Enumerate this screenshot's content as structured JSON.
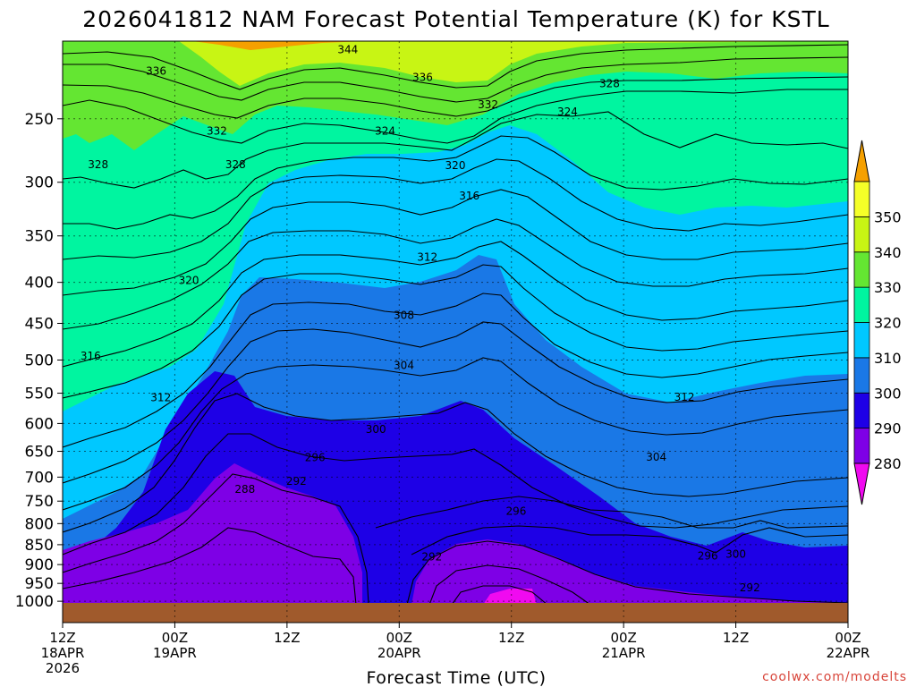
{
  "chart_data": {
    "type": "heatmap",
    "title": "2026041812 NAM Forecast Potential Temperature (K) for KSTL",
    "xlabel": "Forecast Time (UTC)",
    "ylabel": "",
    "y_ticks": [
      250,
      300,
      350,
      400,
      450,
      500,
      550,
      600,
      650,
      700,
      750,
      800,
      850,
      900,
      950,
      1000
    ],
    "y_axis_scale": "log-pressure (hPa), inverted",
    "x_ticks": [
      {
        "hour": 0,
        "line1": "12Z",
        "line2": "18APR",
        "line3": "2026"
      },
      {
        "hour": 12,
        "line1": "00Z",
        "line2": "19APR",
        "line3": ""
      },
      {
        "hour": 24,
        "line1": "12Z",
        "line2": "",
        "line3": ""
      },
      {
        "hour": 36,
        "line1": "00Z",
        "line2": "20APR",
        "line3": ""
      },
      {
        "hour": 48,
        "line1": "12Z",
        "line2": "",
        "line3": ""
      },
      {
        "hour": 60,
        "line1": "00Z",
        "line2": "21APR",
        "line3": ""
      },
      {
        "hour": 72,
        "line1": "12Z",
        "line2": "",
        "line3": ""
      },
      {
        "hour": 84,
        "line1": "00Z",
        "line2": "22APR",
        "line3": ""
      }
    ],
    "colorbar": {
      "ticks": [
        280,
        290,
        300,
        310,
        320,
        330,
        340,
        350
      ],
      "colors": [
        "#7e00e6",
        "#1e00e6",
        "#1a78e6",
        "#00c8ff",
        "#00f5a0",
        "#64e632",
        "#c8f514",
        "#f5ff28"
      ],
      "under_color": "#f00af0",
      "over_color": "#f5a000"
    },
    "grid": true,
    "contour_interval": 2,
    "contour_labels": [
      {
        "value": "344",
        "hour": 30.5,
        "p": 205
      },
      {
        "value": "336",
        "hour": 10.0,
        "p": 218
      },
      {
        "value": "336",
        "hour": 38.5,
        "p": 222
      },
      {
        "value": "332",
        "hour": 16.5,
        "p": 259
      },
      {
        "value": "332",
        "hour": 45.5,
        "p": 240
      },
      {
        "value": "328",
        "hour": 58.5,
        "p": 226
      },
      {
        "value": "324",
        "hour": 34.5,
        "p": 259
      },
      {
        "value": "324",
        "hour": 54.0,
        "p": 245
      },
      {
        "value": "328",
        "hour": 3.8,
        "p": 285
      },
      {
        "value": "328",
        "hour": 18.5,
        "p": 285
      },
      {
        "value": "320",
        "hour": 42.0,
        "p": 286
      },
      {
        "value": "316",
        "hour": 43.5,
        "p": 312
      },
      {
        "value": "312",
        "hour": 39.0,
        "p": 372
      },
      {
        "value": "320",
        "hour": 13.5,
        "p": 398
      },
      {
        "value": "308",
        "hour": 36.5,
        "p": 440
      },
      {
        "value": "316",
        "hour": 3.0,
        "p": 494
      },
      {
        "value": "304",
        "hour": 36.5,
        "p": 508
      },
      {
        "value": "312",
        "hour": 10.5,
        "p": 557
      },
      {
        "value": "312",
        "hour": 66.5,
        "p": 556
      },
      {
        "value": "300",
        "hour": 33.5,
        "p": 610
      },
      {
        "value": "296",
        "hour": 27.0,
        "p": 662
      },
      {
        "value": "304",
        "hour": 63.5,
        "p": 661
      },
      {
        "value": "292",
        "hour": 25.0,
        "p": 708
      },
      {
        "value": "288",
        "hour": 19.5,
        "p": 725
      },
      {
        "value": "296",
        "hour": 48.5,
        "p": 772
      },
      {
        "value": "292",
        "hour": 39.5,
        "p": 880
      },
      {
        "value": "296",
        "hour": 69.0,
        "p": 878
      },
      {
        "value": "300",
        "hour": 72.0,
        "p": 873
      },
      {
        "value": "292",
        "hour": 73.5,
        "p": 962
      }
    ]
  },
  "credit": "coolwx.com/modelts"
}
